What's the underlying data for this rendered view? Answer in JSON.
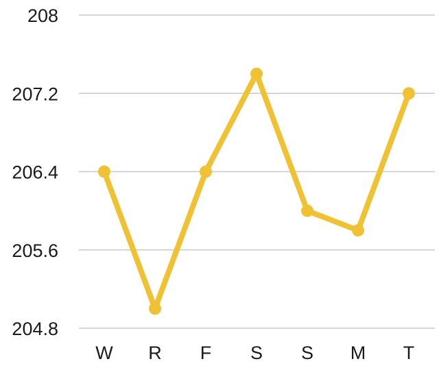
{
  "chart_data": {
    "type": "line",
    "categories": [
      "W",
      "R",
      "F",
      "S",
      "S",
      "M",
      "T"
    ],
    "series": [
      {
        "values": [
          206.4,
          205.0,
          206.4,
          207.4,
          206.0,
          205.8,
          207.2
        ],
        "color": "#F0C233"
      }
    ],
    "yticks": [
      "204.8",
      "205.6",
      "206.4",
      "207.2",
      "208"
    ],
    "ylim": [
      204.8,
      208
    ],
    "grid": true,
    "legend": "none"
  }
}
